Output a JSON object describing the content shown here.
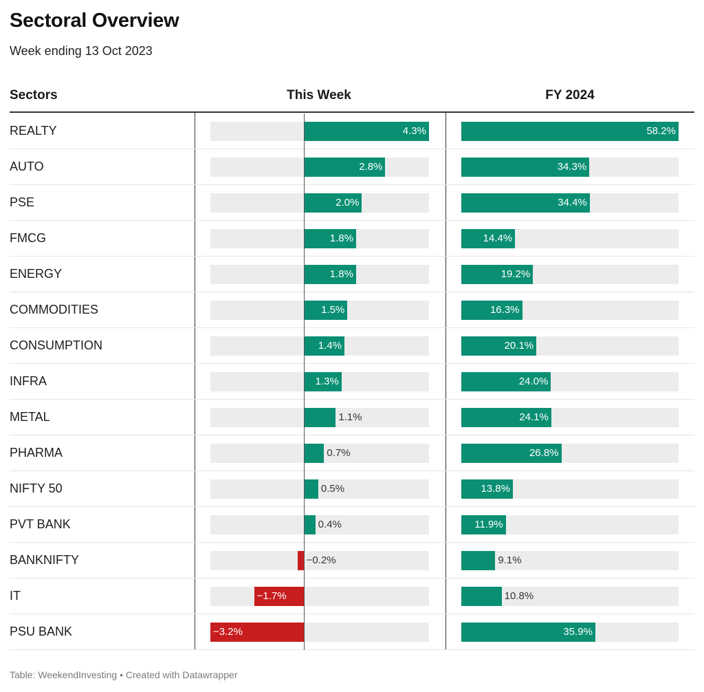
{
  "title": "Sectoral Overview",
  "subtitle": "Week ending 13 Oct 2023",
  "footer": "Table: WeekendInvesting • Created with Datawrapper",
  "colors": {
    "positive": "#0a8f73",
    "negative": "#c81d1e",
    "track": "#ececec"
  },
  "chart_data": {
    "type": "table",
    "columns": [
      "Sectors",
      "This Week",
      "FY 2024"
    ],
    "week_range": [
      -3.2,
      4.3
    ],
    "fy_range": [
      0,
      58.2
    ],
    "rows": [
      {
        "sector": "REALTY",
        "week": 4.3,
        "week_label": "4.3%",
        "fy": 58.2,
        "fy_label": "58.2%"
      },
      {
        "sector": "AUTO",
        "week": 2.8,
        "week_label": "2.8%",
        "fy": 34.3,
        "fy_label": "34.3%"
      },
      {
        "sector": "PSE",
        "week": 2.0,
        "week_label": "2.0%",
        "fy": 34.4,
        "fy_label": "34.4%"
      },
      {
        "sector": "FMCG",
        "week": 1.8,
        "week_label": "1.8%",
        "fy": 14.4,
        "fy_label": "14.4%"
      },
      {
        "sector": "ENERGY",
        "week": 1.8,
        "week_label": "1.8%",
        "fy": 19.2,
        "fy_label": "19.2%"
      },
      {
        "sector": "COMMODITIES",
        "week": 1.5,
        "week_label": "1.5%",
        "fy": 16.3,
        "fy_label": "16.3%"
      },
      {
        "sector": "CONSUMPTION",
        "week": 1.4,
        "week_label": "1.4%",
        "fy": 20.1,
        "fy_label": "20.1%"
      },
      {
        "sector": "INFRA",
        "week": 1.3,
        "week_label": "1.3%",
        "fy": 24.0,
        "fy_label": "24.0%"
      },
      {
        "sector": "METAL",
        "week": 1.1,
        "week_label": "1.1%",
        "fy": 24.1,
        "fy_label": "24.1%"
      },
      {
        "sector": "PHARMA",
        "week": 0.7,
        "week_label": "0.7%",
        "fy": 26.8,
        "fy_label": "26.8%"
      },
      {
        "sector": "NIFTY 50",
        "week": 0.5,
        "week_label": "0.5%",
        "fy": 13.8,
        "fy_label": "13.8%"
      },
      {
        "sector": "PVT BANK",
        "week": 0.4,
        "week_label": "0.4%",
        "fy": 11.9,
        "fy_label": "11.9%"
      },
      {
        "sector": "BANKNIFTY",
        "week": -0.2,
        "week_label": "−0.2%",
        "fy": 9.1,
        "fy_label": "9.1%"
      },
      {
        "sector": "IT",
        "week": -1.7,
        "week_label": "−1.7%",
        "fy": 10.8,
        "fy_label": "10.8%"
      },
      {
        "sector": "PSU BANK",
        "week": -3.2,
        "week_label": "−3.2%",
        "fy": 35.9,
        "fy_label": "35.9%"
      }
    ]
  }
}
